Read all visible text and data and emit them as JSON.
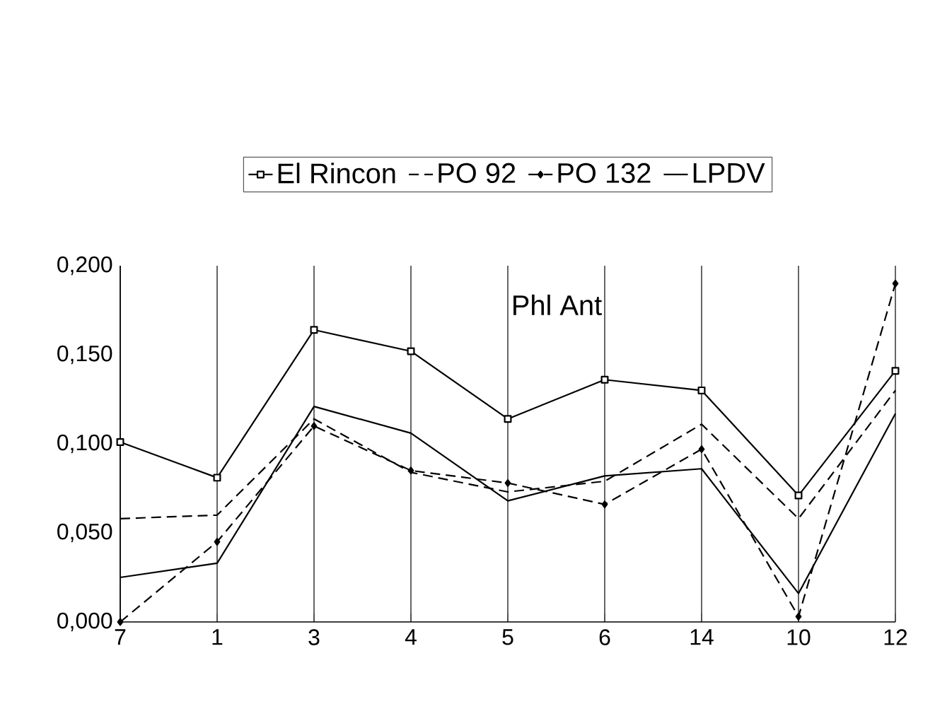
{
  "chart_data": {
    "type": "line",
    "categories": [
      "7",
      "1",
      "3",
      "4",
      "5",
      "6",
      "14",
      "10",
      "12"
    ],
    "series": [
      {
        "name": "El Rincon",
        "color": "#000000",
        "marker": "square",
        "line_style": "solid",
        "values": [
          0.101,
          0.081,
          0.164,
          0.152,
          0.114,
          0.136,
          0.13,
          0.071,
          0.141
        ]
      },
      {
        "name": "PO 92",
        "color": "#000000",
        "marker": "none",
        "line_style": "dashed",
        "values": [
          0.058,
          0.06,
          0.114,
          0.084,
          0.073,
          0.079,
          0.111,
          0.058,
          0.13
        ]
      },
      {
        "name": "PO 132",
        "color": "#000000",
        "marker": "diamond",
        "line_style": "dashed",
        "values": [
          0.0,
          0.045,
          0.11,
          0.085,
          0.078,
          0.066,
          0.097,
          0.003,
          0.19
        ]
      },
      {
        "name": "LPDV",
        "color": "#000000",
        "marker": "none",
        "line_style": "solid",
        "values": [
          0.025,
          0.033,
          0.121,
          0.106,
          0.068,
          0.082,
          0.086,
          0.016,
          0.117
        ]
      }
    ],
    "ylim": [
      0,
      0.2
    ],
    "yticks": [
      {
        "value": 0,
        "label": "0,000"
      },
      {
        "value": 0.05,
        "label": "0,050"
      },
      {
        "value": 0.1,
        "label": "0,100"
      },
      {
        "value": 0.15,
        "label": "0,150"
      },
      {
        "value": 0.2,
        "label": "0,200"
      }
    ],
    "grid": "x",
    "legend": "top",
    "annotations": [
      "Phl Ant"
    ]
  }
}
